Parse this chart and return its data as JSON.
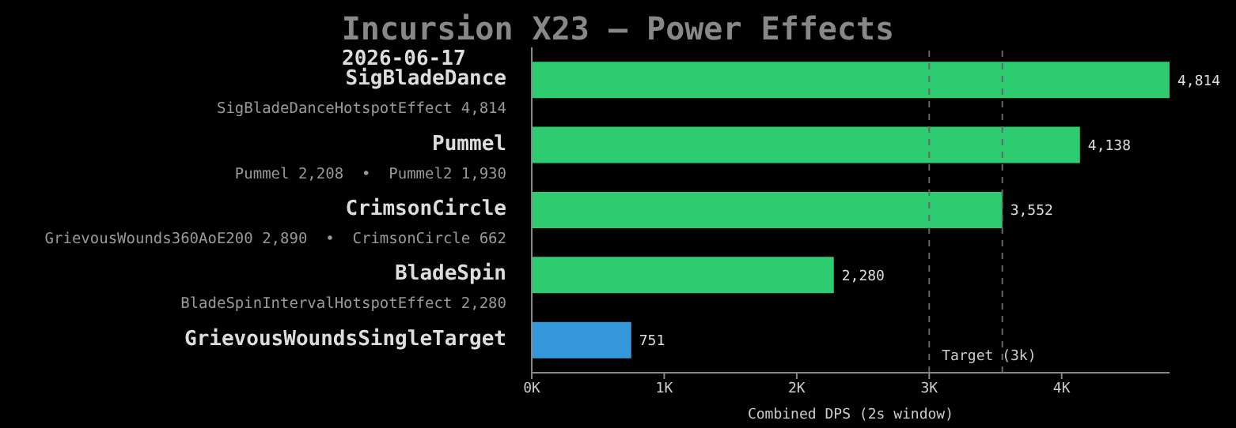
{
  "chart_data": {
    "type": "bar",
    "orientation": "horizontal",
    "title": "Incursion X23 — Power Effects",
    "subtitle": "2026-06-17",
    "categories": [
      "SigBladeDance",
      "Pummel",
      "CrimsonCircle",
      "BladeSpin",
      "GrievousWoundsSingleTarget"
    ],
    "values": [
      4814,
      4138,
      3552,
      2280,
      751
    ],
    "colors": [
      "#2ecc71",
      "#2ecc71",
      "#2ecc71",
      "#2ecc71",
      "#3498db"
    ],
    "xlabel": "Combined DPS (2s window)",
    "xlim": [
      0,
      4814
    ],
    "xticks": [
      {
        "value": 0,
        "label": "0K"
      },
      {
        "value": 1000,
        "label": "1K"
      },
      {
        "value": 2000,
        "label": "2K"
      },
      {
        "value": 3000,
        "label": "3K"
      },
      {
        "value": 4000,
        "label": "4K"
      }
    ],
    "value_labels": [
      "4,814",
      "4,138",
      "3,552",
      "2,280",
      "751"
    ],
    "ref_lines": [
      {
        "axis": "x",
        "value": 3000,
        "label": "Target (3k)",
        "line_style": "dashed",
        "color": "#666666"
      },
      {
        "axis": "x",
        "value": 3552,
        "line_style": "dashed",
        "color": "#666666"
      }
    ],
    "annotations": [
      "SigBladeDanceHotspotEffect 4,814",
      "Pummel 2,208  •  Pummel2 1,930",
      "GrievousWounds360AoE200 2,890  •  CrimsonCircle 662",
      "BladeSpinIntervalHotspotEffect 2,280"
    ],
    "grid": false,
    "legend": false
  }
}
